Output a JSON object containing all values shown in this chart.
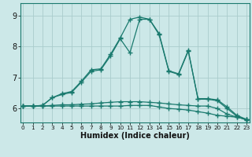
{
  "title": "",
  "xlabel": "Humidex (Indice chaleur)",
  "ylabel": "",
  "bg_color": "#cce8e8",
  "line_color": "#1a7a6e",
  "grid_color": "#aacccc",
  "x_ticks": [
    0,
    1,
    2,
    3,
    4,
    5,
    6,
    7,
    8,
    9,
    10,
    11,
    12,
    13,
    14,
    15,
    16,
    17,
    18,
    19,
    20,
    21,
    22,
    23
  ],
  "y_ticks": [
    6,
    7,
    8,
    9
  ],
  "xlim": [
    -0.3,
    23.3
  ],
  "ylim": [
    5.55,
    9.4
  ],
  "series": [
    {
      "x": [
        0,
        1,
        2,
        3,
        4,
        5,
        6,
        7,
        8,
        9,
        10,
        11,
        12,
        13,
        14,
        15,
        16,
        17,
        18,
        19,
        20,
        21,
        22,
        23
      ],
      "y": [
        6.08,
        6.08,
        6.08,
        6.08,
        6.08,
        6.08,
        6.08,
        6.08,
        6.08,
        6.08,
        6.08,
        6.1,
        6.1,
        6.1,
        6.05,
        6.0,
        5.98,
        5.95,
        5.9,
        5.85,
        5.78,
        5.75,
        5.72,
        5.65
      ]
    },
    {
      "x": [
        0,
        1,
        2,
        3,
        4,
        5,
        6,
        7,
        8,
        9,
        10,
        11,
        12,
        13,
        14,
        15,
        16,
        17,
        18,
        19,
        20,
        21,
        22,
        23
      ],
      "y": [
        6.08,
        6.08,
        6.08,
        6.1,
        6.12,
        6.12,
        6.14,
        6.15,
        6.18,
        6.2,
        6.22,
        6.22,
        6.22,
        6.2,
        6.18,
        6.15,
        6.12,
        6.1,
        6.08,
        6.08,
        6.0,
        5.82,
        5.72,
        5.65
      ]
    },
    {
      "x": [
        0,
        1,
        2,
        3,
        4,
        5,
        6,
        7,
        8,
        9,
        10,
        11,
        12,
        13,
        14,
        15,
        16,
        17,
        18,
        19,
        20,
        21,
        22,
        23
      ],
      "y": [
        6.08,
        6.08,
        6.1,
        6.35,
        6.45,
        6.52,
        6.85,
        7.2,
        7.25,
        7.7,
        8.25,
        7.8,
        8.88,
        8.88,
        8.38,
        7.2,
        7.1,
        7.85,
        6.32,
        6.32,
        6.28,
        6.05,
        5.78,
        5.65
      ]
    },
    {
      "x": [
        0,
        1,
        2,
        3,
        4,
        5,
        6,
        7,
        8,
        9,
        10,
        11,
        12,
        13,
        14,
        15,
        16,
        17,
        18,
        19,
        20,
        21,
        22,
        23
      ],
      "y": [
        6.08,
        6.08,
        6.1,
        6.35,
        6.48,
        6.55,
        6.88,
        7.25,
        7.28,
        7.75,
        8.28,
        8.88,
        8.95,
        8.88,
        8.42,
        7.22,
        7.12,
        7.88,
        6.3,
        6.3,
        6.25,
        6.0,
        5.75,
        5.62
      ]
    }
  ]
}
